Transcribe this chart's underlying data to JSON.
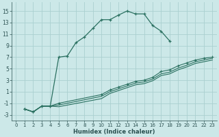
{
  "xlabel": "Humidex (Indice chaleur)",
  "bg_color": "#cce8e8",
  "grid_color": "#aad0d0",
  "line_color": "#2a7060",
  "xlim": [
    -0.5,
    23.5
  ],
  "ylim": [
    -4,
    16.5
  ],
  "yticks": [
    -3,
    -1,
    1,
    3,
    5,
    7,
    9,
    11,
    13,
    15
  ],
  "xticks": [
    0,
    1,
    2,
    3,
    4,
    5,
    6,
    7,
    8,
    9,
    10,
    11,
    12,
    13,
    14,
    15,
    16,
    17,
    18,
    19,
    20,
    21,
    22,
    23
  ],
  "curve1_x": [
    1,
    2,
    3,
    4,
    5,
    6,
    7,
    8,
    9,
    10,
    11,
    12,
    13,
    14,
    15,
    16,
    17,
    18
  ],
  "curve1_y": [
    -2,
    -2.5,
    -1.5,
    -1.5,
    7,
    7.2,
    9.5,
    10.5,
    12,
    13.5,
    13.5,
    14.3,
    15.0,
    14.5,
    14.5,
    12.5,
    11.5,
    9.8
  ],
  "curve2_x": [
    1,
    2,
    3,
    4,
    5,
    10,
    11,
    12,
    13,
    14,
    15,
    16,
    17,
    18,
    19,
    20,
    21,
    22,
    23
  ],
  "curve2_y": [
    -2,
    -2.5,
    -1.5,
    -1.5,
    -1,
    0.5,
    1.3,
    1.8,
    2.3,
    2.8,
    3.0,
    3.5,
    4.5,
    4.8,
    5.5,
    6.0,
    6.5,
    6.8,
    7.0
  ],
  "curve3_x": [
    1,
    2,
    3,
    4,
    5,
    10,
    11,
    12,
    13,
    14,
    15,
    16,
    17,
    18,
    19,
    20,
    21,
    22,
    23
  ],
  "curve3_y": [
    -2,
    -2.5,
    -1.5,
    -1.5,
    -1.3,
    0.2,
    1.0,
    1.5,
    2.0,
    2.5,
    2.7,
    3.2,
    4.1,
    4.4,
    5.1,
    5.6,
    6.2,
    6.5,
    6.8
  ],
  "curve4_x": [
    1,
    2,
    3,
    4,
    5,
    10,
    11,
    12,
    13,
    14,
    15,
    16,
    17,
    18,
    19,
    20,
    21,
    22,
    23
  ],
  "curve4_y": [
    -2,
    -2.5,
    -1.5,
    -1.5,
    -1.6,
    -0.2,
    0.7,
    1.2,
    1.7,
    2.2,
    2.4,
    2.9,
    3.8,
    4.1,
    4.8,
    5.3,
    5.9,
    6.2,
    6.5
  ]
}
